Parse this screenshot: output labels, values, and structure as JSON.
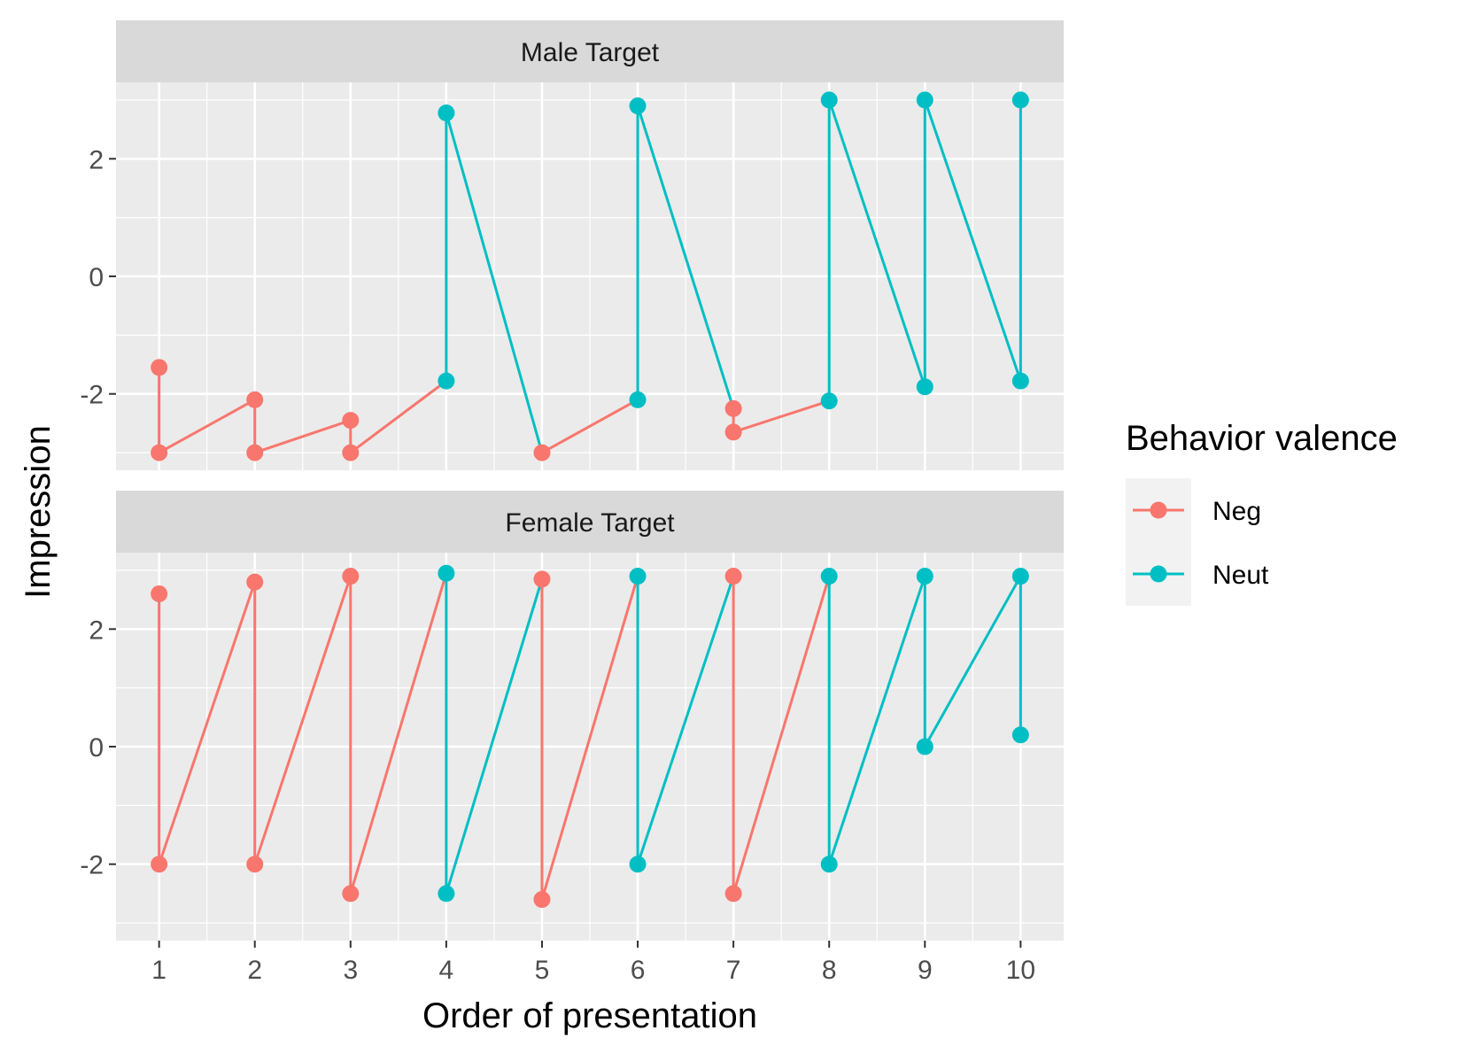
{
  "chart_data": {
    "type": "line",
    "xlabel": "Order of presentation",
    "ylabel": "Impression",
    "x_ticks": [
      1,
      2,
      3,
      4,
      5,
      6,
      7,
      8,
      9,
      10
    ],
    "y_ticks": [
      -2,
      0,
      2
    ],
    "xlim": [
      0.55,
      10.45
    ],
    "ylim": [
      -3.3,
      3.3
    ],
    "grid": true,
    "legend": {
      "title": "Behavior valence",
      "position": "right",
      "entries": [
        {
          "label": "Neg",
          "color": "#F8766D"
        },
        {
          "label": "Neut",
          "color": "#00BFC4"
        }
      ]
    },
    "facets": [
      {
        "label": "Male Target",
        "points": [
          {
            "x": 1,
            "y": -1.55,
            "group": "Neg"
          },
          {
            "x": 1,
            "y": -3.0,
            "group": "Neg"
          },
          {
            "x": 2,
            "y": -2.1,
            "group": "Neg"
          },
          {
            "x": 2,
            "y": -3.0,
            "group": "Neg"
          },
          {
            "x": 3,
            "y": -2.45,
            "group": "Neg"
          },
          {
            "x": 3,
            "y": -3.0,
            "group": "Neg"
          },
          {
            "x": 4,
            "y": -1.78,
            "group": "Neut"
          },
          {
            "x": 4,
            "y": 2.78,
            "group": "Neut"
          },
          {
            "x": 5,
            "y": -3.0,
            "group": "Neg"
          },
          {
            "x": 6,
            "y": -2.1,
            "group": "Neut"
          },
          {
            "x": 6,
            "y": 2.9,
            "group": "Neut"
          },
          {
            "x": 7,
            "y": -2.25,
            "group": "Neg"
          },
          {
            "x": 7,
            "y": -2.65,
            "group": "Neg"
          },
          {
            "x": 8,
            "y": -2.12,
            "group": "Neut"
          },
          {
            "x": 8,
            "y": 3.0,
            "group": "Neut"
          },
          {
            "x": 9,
            "y": -1.88,
            "group": "Neut"
          },
          {
            "x": 9,
            "y": 3.0,
            "group": "Neut"
          },
          {
            "x": 10,
            "y": -1.78,
            "group": "Neut"
          },
          {
            "x": 10,
            "y": 3.0,
            "group": "Neut"
          }
        ],
        "segments": [
          {
            "from": [
              1,
              -1.55
            ],
            "to": [
              1,
              -3.0
            ],
            "group": "Neg"
          },
          {
            "from": [
              1,
              -3.0
            ],
            "to": [
              2,
              -2.1
            ],
            "group": "Neg"
          },
          {
            "from": [
              2,
              -2.1
            ],
            "to": [
              2,
              -3.0
            ],
            "group": "Neg"
          },
          {
            "from": [
              2,
              -3.0
            ],
            "to": [
              3,
              -2.45
            ],
            "group": "Neg"
          },
          {
            "from": [
              3,
              -2.45
            ],
            "to": [
              3,
              -3.0
            ],
            "group": "Neg"
          },
          {
            "from": [
              3,
              -3.0
            ],
            "to": [
              4,
              -1.78
            ],
            "group": "Neg"
          },
          {
            "from": [
              4,
              -1.78
            ],
            "to": [
              4,
              2.78
            ],
            "group": "Neut"
          },
          {
            "from": [
              4,
              2.78
            ],
            "to": [
              5,
              -3.0
            ],
            "group": "Neut"
          },
          {
            "from": [
              5,
              -3.0
            ],
            "to": [
              6,
              -2.1
            ],
            "group": "Neg"
          },
          {
            "from": [
              6,
              -2.1
            ],
            "to": [
              6,
              2.9
            ],
            "group": "Neut"
          },
          {
            "from": [
              6,
              2.9
            ],
            "to": [
              7,
              -2.25
            ],
            "group": "Neut"
          },
          {
            "from": [
              7,
              -2.25
            ],
            "to": [
              7,
              -2.65
            ],
            "group": "Neg"
          },
          {
            "from": [
              7,
              -2.65
            ],
            "to": [
              8,
              -2.12
            ],
            "group": "Neg"
          },
          {
            "from": [
              8,
              -2.12
            ],
            "to": [
              8,
              3.0
            ],
            "group": "Neut"
          },
          {
            "from": [
              8,
              3.0
            ],
            "to": [
              9,
              -1.88
            ],
            "group": "Neut"
          },
          {
            "from": [
              9,
              -1.88
            ],
            "to": [
              9,
              3.0
            ],
            "group": "Neut"
          },
          {
            "from": [
              9,
              3.0
            ],
            "to": [
              10,
              -1.78
            ],
            "group": "Neut"
          },
          {
            "from": [
              10,
              -1.78
            ],
            "to": [
              10,
              3.0
            ],
            "group": "Neut"
          }
        ]
      },
      {
        "label": "Female Target",
        "points": [
          {
            "x": 1,
            "y": 2.6,
            "group": "Neg"
          },
          {
            "x": 1,
            "y": -2.0,
            "group": "Neg"
          },
          {
            "x": 2,
            "y": 2.8,
            "group": "Neg"
          },
          {
            "x": 2,
            "y": -2.0,
            "group": "Neg"
          },
          {
            "x": 3,
            "y": 2.9,
            "group": "Neg"
          },
          {
            "x": 3,
            "y": -2.5,
            "group": "Neg"
          },
          {
            "x": 4,
            "y": 2.95,
            "group": "Neut"
          },
          {
            "x": 4,
            "y": -2.5,
            "group": "Neut"
          },
          {
            "x": 5,
            "y": 2.85,
            "group": "Neg"
          },
          {
            "x": 5,
            "y": -2.6,
            "group": "Neg"
          },
          {
            "x": 6,
            "y": 2.9,
            "group": "Neut"
          },
          {
            "x": 6,
            "y": -2.0,
            "group": "Neut"
          },
          {
            "x": 7,
            "y": 2.9,
            "group": "Neg"
          },
          {
            "x": 7,
            "y": -2.5,
            "group": "Neg"
          },
          {
            "x": 8,
            "y": 2.9,
            "group": "Neut"
          },
          {
            "x": 8,
            "y": -2.0,
            "group": "Neut"
          },
          {
            "x": 9,
            "y": 2.9,
            "group": "Neut"
          },
          {
            "x": 9,
            "y": 0.0,
            "group": "Neut"
          },
          {
            "x": 10,
            "y": 2.9,
            "group": "Neut"
          },
          {
            "x": 10,
            "y": 0.2,
            "group": "Neut"
          }
        ],
        "segments": [
          {
            "from": [
              1,
              2.6
            ],
            "to": [
              1,
              -2.0
            ],
            "group": "Neg"
          },
          {
            "from": [
              1,
              -2.0
            ],
            "to": [
              2,
              2.8
            ],
            "group": "Neg"
          },
          {
            "from": [
              2,
              2.8
            ],
            "to": [
              2,
              -2.0
            ],
            "group": "Neg"
          },
          {
            "from": [
              2,
              -2.0
            ],
            "to": [
              3,
              2.9
            ],
            "group": "Neg"
          },
          {
            "from": [
              3,
              2.9
            ],
            "to": [
              3,
              -2.5
            ],
            "group": "Neg"
          },
          {
            "from": [
              3,
              -2.5
            ],
            "to": [
              4,
              2.95
            ],
            "group": "Neg"
          },
          {
            "from": [
              4,
              2.95
            ],
            "to": [
              4,
              -2.5
            ],
            "group": "Neut"
          },
          {
            "from": [
              4,
              -2.5
            ],
            "to": [
              5,
              2.85
            ],
            "group": "Neut"
          },
          {
            "from": [
              5,
              2.85
            ],
            "to": [
              5,
              -2.6
            ],
            "group": "Neg"
          },
          {
            "from": [
              5,
              -2.6
            ],
            "to": [
              6,
              2.9
            ],
            "group": "Neg"
          },
          {
            "from": [
              6,
              2.9
            ],
            "to": [
              6,
              -2.0
            ],
            "group": "Neut"
          },
          {
            "from": [
              6,
              -2.0
            ],
            "to": [
              7,
              2.9
            ],
            "group": "Neut"
          },
          {
            "from": [
              7,
              2.9
            ],
            "to": [
              7,
              -2.5
            ],
            "group": "Neg"
          },
          {
            "from": [
              7,
              -2.5
            ],
            "to": [
              8,
              2.9
            ],
            "group": "Neg"
          },
          {
            "from": [
              8,
              2.9
            ],
            "to": [
              8,
              -2.0
            ],
            "group": "Neut"
          },
          {
            "from": [
              8,
              -2.0
            ],
            "to": [
              9,
              2.9
            ],
            "group": "Neut"
          },
          {
            "from": [
              9,
              2.9
            ],
            "to": [
              9,
              0.0
            ],
            "group": "Neut"
          },
          {
            "from": [
              9,
              0.0
            ],
            "to": [
              10,
              2.9
            ],
            "group": "Neut"
          },
          {
            "from": [
              10,
              2.9
            ],
            "to": [
              10,
              0.2
            ],
            "group": "Neut"
          }
        ]
      }
    ]
  }
}
